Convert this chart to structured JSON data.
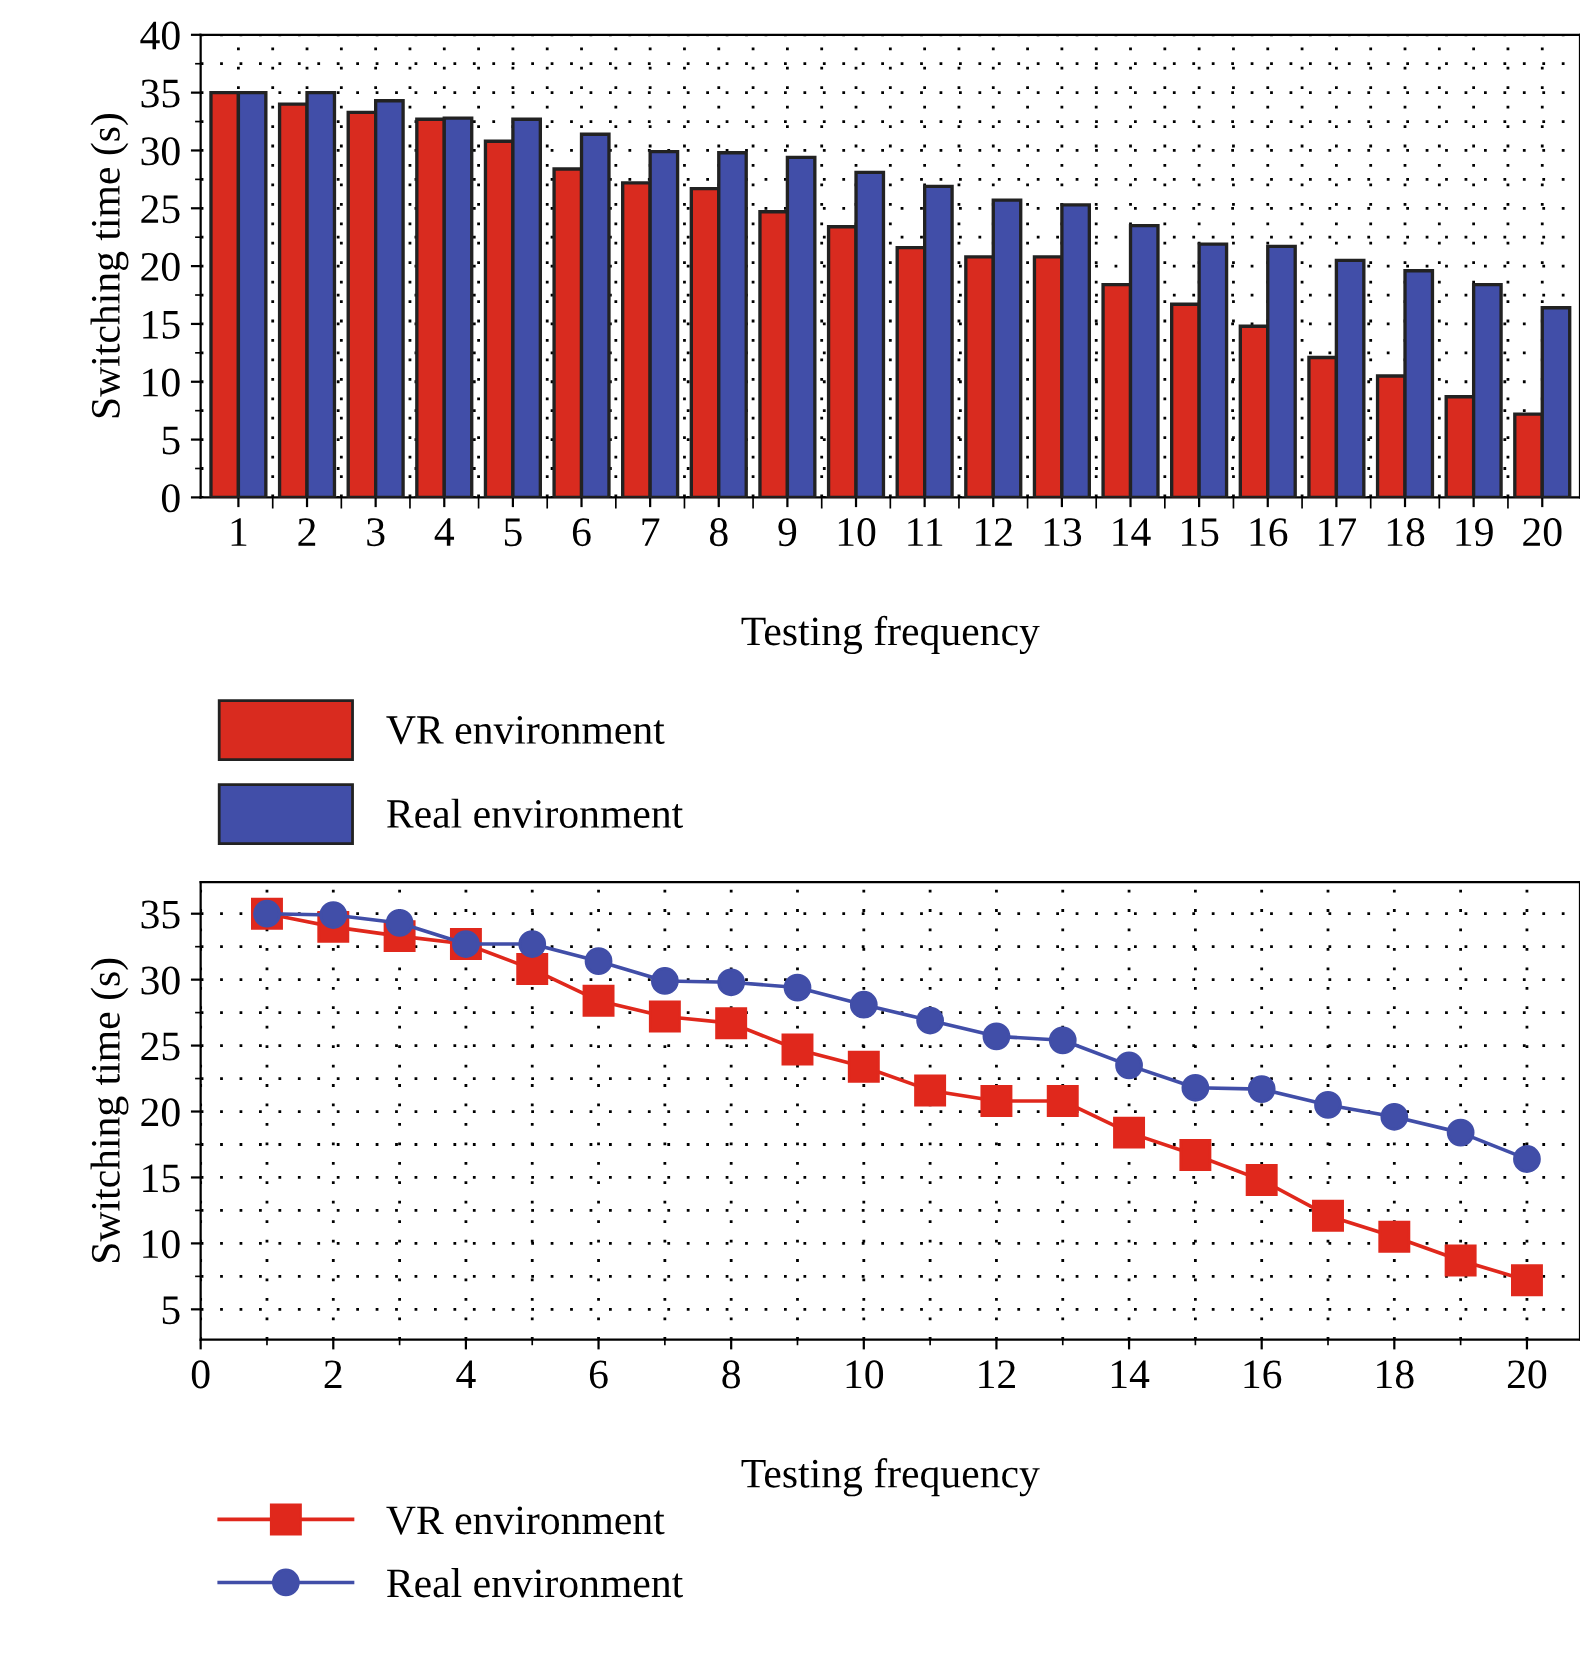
{
  "chart_data": [
    {
      "type": "bar",
      "xlabel": "Testing frequency",
      "ylabel": "Switching time (s)",
      "categories": [
        "1",
        "2",
        "3",
        "4",
        "5",
        "6",
        "7",
        "8",
        "9",
        "10",
        "11",
        "12",
        "13",
        "14",
        "15",
        "16",
        "17",
        "18",
        "19",
        "20"
      ],
      "series": [
        {
          "name": "VR environment",
          "color": "#d92b1f",
          "values": [
            35,
            34,
            33.3,
            32.7,
            30.8,
            28.4,
            27.2,
            26.7,
            24.7,
            23.4,
            21.6,
            20.8,
            20.8,
            18.4,
            16.7,
            14.8,
            12.1,
            10.5,
            8.7,
            7.2
          ]
        },
        {
          "name": "Real environment",
          "color": "#414ea8",
          "values": [
            35,
            35,
            34.3,
            32.8,
            32.7,
            31.4,
            29.9,
            29.8,
            29.4,
            28.1,
            26.9,
            25.7,
            25.3,
            23.5,
            21.9,
            21.7,
            20.5,
            19.6,
            18.4,
            16.4
          ]
        }
      ],
      "ylim": [
        0,
        40
      ],
      "yticks": [
        0,
        5,
        10,
        15,
        20,
        25,
        30,
        35,
        40
      ],
      "grid": true,
      "legend": "bottom left"
    },
    {
      "type": "line",
      "xlabel": "Testing frequency",
      "ylabel": "Switching time (s)",
      "x": [
        1,
        2,
        3,
        4,
        5,
        6,
        7,
        8,
        9,
        10,
        11,
        12,
        13,
        14,
        15,
        16,
        17,
        18,
        19,
        20
      ],
      "series": [
        {
          "name": "VR environment",
          "color": "#e0281c",
          "marker": "square",
          "values": [
            35,
            34,
            33.3,
            32.7,
            30.8,
            28.4,
            27.2,
            26.7,
            24.7,
            23.4,
            21.6,
            20.8,
            20.8,
            18.4,
            16.7,
            14.8,
            12.1,
            10.5,
            8.7,
            7.2
          ]
        },
        {
          "name": "Real environment",
          "color": "#414ea8",
          "marker": "circle",
          "values": [
            35,
            34.9,
            34.3,
            32.7,
            32.7,
            31.4,
            29.9,
            29.8,
            29.4,
            28.1,
            26.9,
            25.7,
            25.4,
            23.5,
            21.8,
            21.7,
            20.5,
            19.6,
            18.4,
            16.4
          ]
        }
      ],
      "xlim": [
        0,
        20.8
      ],
      "xticks": [
        0,
        2,
        4,
        6,
        8,
        10,
        12,
        14,
        16,
        18,
        20
      ],
      "ylim": [
        2.7,
        37.4
      ],
      "yticks": [
        5,
        10,
        15,
        20,
        25,
        30,
        35
      ],
      "grid": true,
      "legend": "bottom left",
      "line_style": "solid"
    }
  ]
}
